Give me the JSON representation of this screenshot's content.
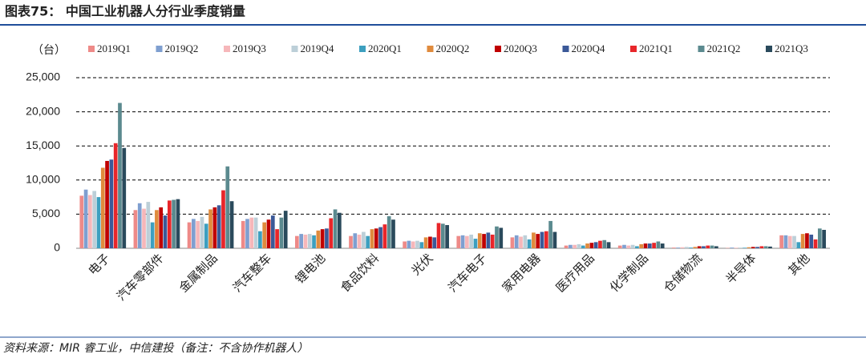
{
  "chart_data": {
    "type": "bar",
    "title": "图表75： 中国工业机器人分行业季度销量",
    "unit": "（台）",
    "source": "资料来源：MIR 睿工业，中信建投（备注：不含协作机器人）",
    "categories": [
      "电子",
      "汽车零部件",
      "金属制品",
      "汽车整车",
      "锂电池",
      "食品饮料",
      "光伏",
      "汽车电子",
      "家用电器",
      "医疗用品",
      "化学制品",
      "仓储物流",
      "半导体",
      "其他"
    ],
    "series": [
      {
        "name": "2019Q1",
        "color": "#ee8a88",
        "values": [
          7700,
          5600,
          3800,
          4000,
          1800,
          1800,
          1000,
          1800,
          1600,
          400,
          400,
          100,
          50,
          1900
        ]
      },
      {
        "name": "2019Q2",
        "color": "#7f9fd0",
        "values": [
          8600,
          6600,
          4300,
          4300,
          2100,
          2200,
          1100,
          1900,
          1900,
          500,
          500,
          100,
          100,
          1900
        ]
      },
      {
        "name": "2019Q3",
        "color": "#f6b7ba",
        "values": [
          7800,
          5800,
          4000,
          4500,
          2000,
          2000,
          1000,
          1800,
          1700,
          500,
          400,
          150,
          80,
          1800
        ]
      },
      {
        "name": "2019Q4",
        "color": "#bccfd8",
        "values": [
          8400,
          6800,
          4600,
          4500,
          2100,
          2400,
          1100,
          2000,
          1900,
          600,
          500,
          200,
          100,
          1800
        ]
      },
      {
        "name": "2020Q1",
        "color": "#3d9fbf",
        "values": [
          7500,
          3800,
          3600,
          2500,
          1900,
          1800,
          900,
          1400,
          1300,
          400,
          300,
          100,
          80,
          900
        ]
      },
      {
        "name": "2020Q2",
        "color": "#e08b3d",
        "values": [
          11800,
          5600,
          5700,
          3800,
          2600,
          2800,
          1600,
          2200,
          2300,
          700,
          600,
          200,
          150,
          2100
        ]
      },
      {
        "name": "2020Q3",
        "color": "#c00000",
        "values": [
          12800,
          6000,
          6000,
          4200,
          2800,
          2900,
          1700,
          2100,
          2100,
          800,
          700,
          300,
          200,
          2200
        ]
      },
      {
        "name": "2020Q4",
        "color": "#3b5998",
        "values": [
          13000,
          4800,
          6300,
          4800,
          2900,
          3100,
          1600,
          2300,
          2400,
          900,
          700,
          300,
          200,
          2000
        ]
      },
      {
        "name": "2021Q1",
        "color": "#e8262a",
        "values": [
          15400,
          7000,
          8500,
          2800,
          4400,
          3500,
          3700,
          2000,
          2500,
          1100,
          800,
          400,
          300,
          1300
        ]
      },
      {
        "name": "2021Q2",
        "color": "#5b8a8f",
        "values": [
          21300,
          7100,
          12000,
          4500,
          5700,
          4700,
          3600,
          3200,
          4000,
          1200,
          1000,
          400,
          300,
          2900
        ]
      },
      {
        "name": "2021Q3",
        "color": "#2a4a5c",
        "values": [
          14700,
          7200,
          6900,
          5500,
          5200,
          4200,
          3400,
          3000,
          2400,
          900,
          700,
          300,
          250,
          2700
        ]
      }
    ],
    "ylim": [
      0,
      25000
    ],
    "yticks": [
      0,
      {
        "value": 5000,
        "label": "5,000"
      },
      {
        "value": 10000,
        "label": "10,000"
      },
      {
        "value": 15000,
        "label": "15,000"
      },
      {
        "value": 20000,
        "label": "20,000"
      },
      {
        "value": 25000,
        "label": "25,000"
      }
    ],
    "grid": true
  }
}
